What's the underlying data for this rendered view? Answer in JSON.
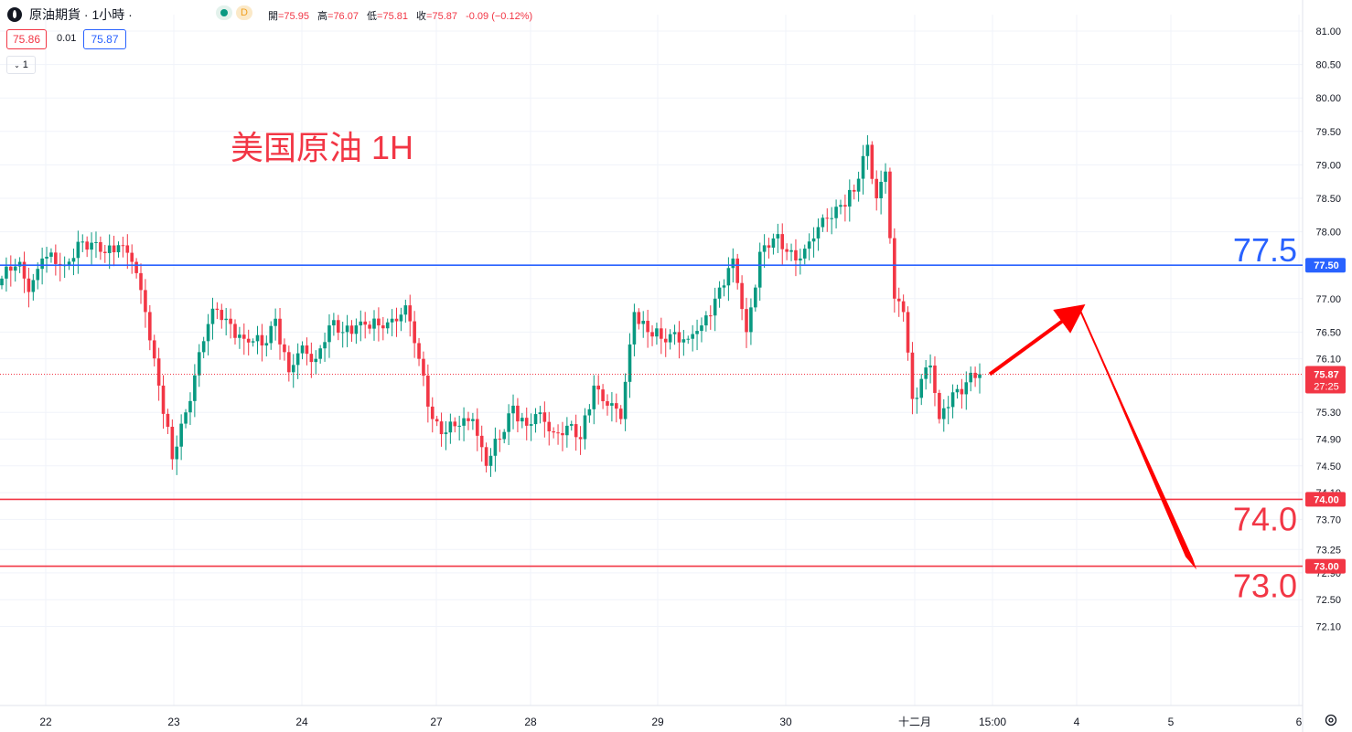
{
  "header": {
    "symbol_title": "原油期貨 · 1小時 ·",
    "market_status_icon": "green-dot-icon",
    "d_badge": "D",
    "ohlc": [
      {
        "label": "開",
        "value": "=75.95"
      },
      {
        "label": "高",
        "value": "=76.07"
      },
      {
        "label": "低",
        "value": "=75.81"
      },
      {
        "label": "收",
        "value": "=75.87"
      },
      {
        "label": "",
        "value": "-0.09 (−0.12%)"
      }
    ]
  },
  "trade": {
    "bid": "75.86",
    "spread": "0.01",
    "ask": "75.87"
  },
  "interval_toggle": {
    "icon": "chevron-down-icon",
    "label": "1"
  },
  "settings_icon": "gear-icon",
  "colors": {
    "up": "#089981",
    "down": "#f23645",
    "blue_line": "#2962ff",
    "red_line": "#f23645",
    "grid": "#f0f3fa"
  },
  "chart_data": {
    "type": "candlestick",
    "title": "美国原油 1H",
    "x_tick_labels": [
      "22",
      "23",
      "24",
      "27",
      "28",
      "29",
      "30",
      "十二月",
      "15:00",
      "4",
      "5",
      "6"
    ],
    "y_tick_labels": [
      "81.00",
      "80.50",
      "80.00",
      "79.50",
      "79.00",
      "78.50",
      "78.00",
      "77.00",
      "76.50",
      "76.10",
      "75.30",
      "74.90",
      "74.50",
      "74.10",
      "73.70",
      "73.25",
      "72.90",
      "72.50",
      "72.10"
    ],
    "ylim": [
      71.85,
      81.2
    ],
    "horizontal_lines": [
      {
        "value": 77.5,
        "color": "#2962ff",
        "axis_label": "77.50",
        "annotation": "77.5"
      },
      {
        "value": 74.0,
        "color": "#f23645",
        "axis_label": "74.00",
        "annotation": "74.0"
      },
      {
        "value": 73.0,
        "color": "#f23645",
        "axis_label": "73.00",
        "annotation": "73.0"
      }
    ],
    "last_price": {
      "value": 75.87,
      "label": "75.87",
      "countdown": "27:25"
    },
    "projection_arrows": [
      {
        "from": 75.87,
        "to": 76.85
      },
      {
        "from": 76.85,
        "to": 72.95
      }
    ],
    "anchors": [
      {
        "i": 0,
        "c": 77.3
      },
      {
        "i": 4,
        "c": 77.55
      },
      {
        "i": 6,
        "c": 77.1
      },
      {
        "i": 9,
        "c": 77.6
      },
      {
        "i": 14,
        "c": 77.5
      },
      {
        "i": 17,
        "c": 77.85
      },
      {
        "i": 22,
        "c": 77.7
      },
      {
        "i": 26,
        "c": 77.8
      },
      {
        "i": 29,
        "c": 77.55
      },
      {
        "i": 32,
        "c": 76.8
      },
      {
        "i": 35,
        "c": 75.7
      },
      {
        "i": 38,
        "c": 74.6
      },
      {
        "i": 41,
        "c": 75.3
      },
      {
        "i": 44,
        "c": 76.2
      },
      {
        "i": 47,
        "c": 76.85
      },
      {
        "i": 50,
        "c": 76.7
      },
      {
        "i": 54,
        "c": 76.4
      },
      {
        "i": 58,
        "c": 76.3
      },
      {
        "i": 61,
        "c": 76.7
      },
      {
        "i": 64,
        "c": 75.9
      },
      {
        "i": 67,
        "c": 76.3
      },
      {
        "i": 70,
        "c": 76.1
      },
      {
        "i": 73,
        "c": 76.6
      },
      {
        "i": 76,
        "c": 76.5
      },
      {
        "i": 79,
        "c": 76.6
      },
      {
        "i": 84,
        "c": 76.6
      },
      {
        "i": 87,
        "c": 76.7
      },
      {
        "i": 90,
        "c": 76.9
      },
      {
        "i": 93,
        "c": 76.1
      },
      {
        "i": 96,
        "c": 75.2
      },
      {
        "i": 99,
        "c": 75.0
      },
      {
        "i": 102,
        "c": 75.1
      },
      {
        "i": 105,
        "c": 75.2
      },
      {
        "i": 108,
        "c": 74.5
      },
      {
        "i": 111,
        "c": 74.9
      },
      {
        "i": 114,
        "c": 75.4
      },
      {
        "i": 117,
        "c": 75.1
      },
      {
        "i": 120,
        "c": 75.3
      },
      {
        "i": 123,
        "c": 75.0
      },
      {
        "i": 126,
        "c": 75.1
      },
      {
        "i": 129,
        "c": 74.9
      },
      {
        "i": 132,
        "c": 75.7
      },
      {
        "i": 135,
        "c": 75.4
      },
      {
        "i": 138,
        "c": 75.2
      },
      {
        "i": 141,
        "c": 76.8
      },
      {
        "i": 144,
        "c": 76.5
      },
      {
        "i": 147,
        "c": 76.4
      },
      {
        "i": 150,
        "c": 76.5
      },
      {
        "i": 153,
        "c": 76.4
      },
      {
        "i": 156,
        "c": 76.6
      },
      {
        "i": 159,
        "c": 77.0
      },
      {
        "i": 163,
        "c": 77.6
      },
      {
        "i": 166,
        "c": 76.5
      },
      {
        "i": 169,
        "c": 77.7
      },
      {
        "i": 172,
        "c": 77.9
      },
      {
        "i": 175,
        "c": 77.7
      },
      {
        "i": 178,
        "c": 77.6
      },
      {
        "i": 181,
        "c": 77.9
      },
      {
        "i": 184,
        "c": 78.2
      },
      {
        "i": 187,
        "c": 78.4
      },
      {
        "i": 190,
        "c": 78.6
      },
      {
        "i": 193,
        "c": 79.3
      },
      {
        "i": 195,
        "c": 78.5
      },
      {
        "i": 197,
        "c": 78.9
      },
      {
        "i": 199,
        "c": 77.0
      },
      {
        "i": 201,
        "c": 76.8
      },
      {
        "i": 203,
        "c": 75.5
      },
      {
        "i": 205,
        "c": 75.8
      },
      {
        "i": 207,
        "c": 76.0
      },
      {
        "i": 209,
        "c": 75.2
      },
      {
        "i": 212,
        "c": 75.6
      },
      {
        "i": 215,
        "c": 75.75
      },
      {
        "i": 218,
        "c": 75.87
      }
    ],
    "n_bars": 219
  }
}
